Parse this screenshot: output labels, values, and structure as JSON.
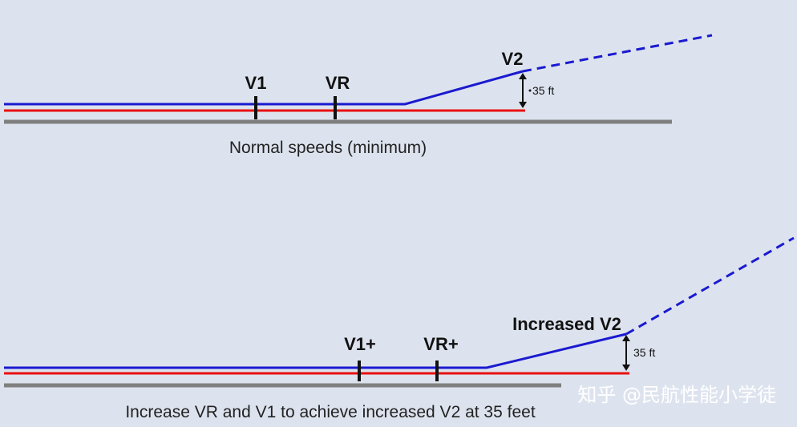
{
  "top_panel": {
    "marker_v1": "V1",
    "marker_vr": "VR",
    "marker_v2": "V2",
    "height_label": "35 ft",
    "caption": "Normal speeds (minimum)"
  },
  "bottom_panel": {
    "marker_v1": "V1+",
    "marker_vr": "VR+",
    "marker_v2": "Increased V2",
    "height_label": "35 ft",
    "caption": "Increase VR and V1 to achieve increased V2 at 35 feet"
  },
  "watermark": "知乎 @民航性能小学徒",
  "colors": {
    "background": "#dde3ee",
    "ground": "#7f7f7f",
    "ground_roll_red": "#e81010",
    "flight_path_blue": "#1a1ad0",
    "marker": "#111111"
  }
}
